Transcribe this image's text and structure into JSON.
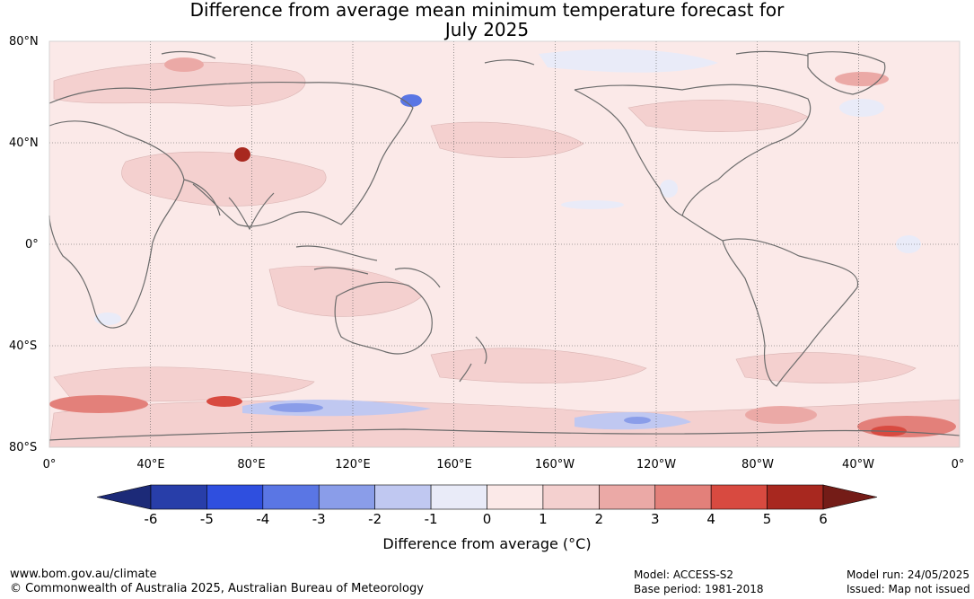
{
  "title_line1": "Difference from average mean minimum temperature forecast for",
  "title_line2": "July 2025",
  "lat_labels": [
    "80°N",
    "40°N",
    "0°",
    "40°S",
    "80°S"
  ],
  "lon_labels": [
    "0°",
    "40°E",
    "80°E",
    "120°E",
    "160°E",
    "160°W",
    "120°W",
    "80°W",
    "40°W",
    "0°"
  ],
  "colorbar": {
    "ticks": [
      "-6",
      "-5",
      "-4",
      "-3",
      "-2",
      "-1",
      "0",
      "1",
      "2",
      "3",
      "4",
      "5",
      "6"
    ],
    "colors": [
      "#283ea9",
      "#2f4fdf",
      "#5a76e4",
      "#8a9de9",
      "#c0c8f1",
      "#e9ebf8",
      "#fbe9e8",
      "#f4d0cf",
      "#eba9a6",
      "#e3807a",
      "#d84a40",
      "#a8281f"
    ],
    "under_color": "#1c2a78",
    "over_color": "#741c17",
    "label": "Difference from average (°C)"
  },
  "footer": {
    "website": "www.bom.gov.au/climate",
    "copyright": "© Commonwealth of Australia 2025, Australian Bureau of Meteorology",
    "model": "Model: ACCESS-S2",
    "base_period": "Base period: 1981-2018",
    "model_run": "Model run: 24/05/2025",
    "issued": "Issued: Map not issued"
  }
}
